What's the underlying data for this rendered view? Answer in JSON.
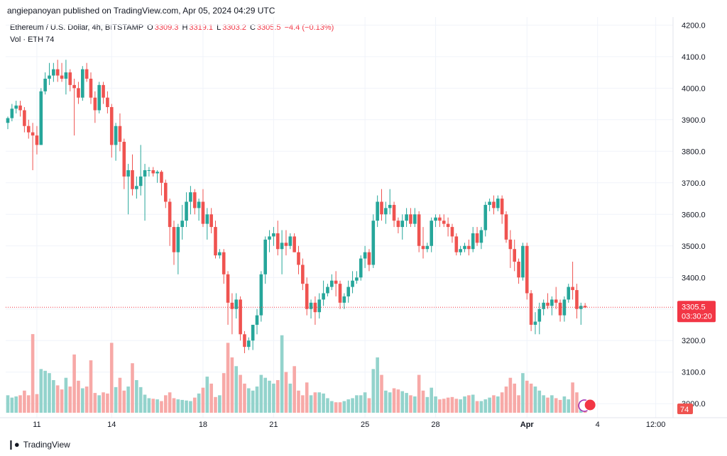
{
  "header": {
    "published": "angiepanoyan published on TradingView.com, Apr 05, 2024 04:29 UTC"
  },
  "legend": {
    "symbol": "Ethereum / U.S. Dollar, 4h, BITSTAMP",
    "o_label": "O",
    "o": "3309.3",
    "h_label": "H",
    "h": "3319.1",
    "l_label": "L",
    "l": "3303.2",
    "c_label": "C",
    "c": "3305.5",
    "change": "−4.4 (−0.13%)",
    "vol_label": "Vol · ETH",
    "vol": "74"
  },
  "footer": {
    "brand": "TradingView"
  },
  "colors": {
    "up": "#26a69a",
    "down": "#ef5350",
    "up_vol": "#93d3cc",
    "down_vol": "#f7a9a7",
    "price_line": "#f23645"
  },
  "chart_data": {
    "type": "candlestick",
    "interval": "4h",
    "ylim": [
      2960,
      4230
    ],
    "y_ticks": [
      "4200.0",
      "4100.0",
      "4000.0",
      "3900.0",
      "3800.0",
      "3700.0",
      "3600.0",
      "3500.0",
      "3400.0",
      "3300.0",
      "3200.0",
      "3100.0",
      "3000.0"
    ],
    "x_ticks": [
      {
        "label": "11",
        "bar": 7
      },
      {
        "label": "14",
        "bar": 25
      },
      {
        "label": "18",
        "bar": 47
      },
      {
        "label": "21",
        "bar": 64
      },
      {
        "label": "25",
        "bar": 86
      },
      {
        "label": "28",
        "bar": 103
      },
      {
        "label": "Apr",
        "bar": 125
      },
      {
        "label": "4",
        "bar": 142
      },
      {
        "label": "12:00",
        "bar": 156
      }
    ],
    "last_price": "3305.5",
    "countdown": "03:30:20",
    "last_volume": "74",
    "candles": [
      [
        3890,
        3910,
        3870,
        3905,
        300
      ],
      [
        3905,
        3950,
        3895,
        3935,
        260
      ],
      [
        3935,
        3960,
        3920,
        3945,
        280
      ],
      [
        3945,
        3960,
        3910,
        3930,
        300
      ],
      [
        3930,
        3940,
        3860,
        3880,
        380
      ],
      [
        3880,
        3900,
        3840,
        3860,
        300
      ],
      [
        3860,
        3890,
        3740,
        3850,
        1350
      ],
      [
        3850,
        3880,
        3790,
        3820,
        320
      ],
      [
        3820,
        4000,
        3820,
        3990,
        750
      ],
      [
        3990,
        4050,
        3980,
        4030,
        720
      ],
      [
        4030,
        4080,
        4010,
        4040,
        680
      ],
      [
        4040,
        4080,
        4020,
        4060,
        560
      ],
      [
        4060,
        4090,
        4020,
        4040,
        470
      ],
      [
        4040,
        4080,
        4020,
        4030,
        400
      ],
      [
        4030,
        4090,
        3980,
        4050,
        600
      ],
      [
        4050,
        4060,
        3990,
        4010,
        450
      ],
      [
        4010,
        4030,
        3850,
        4000,
        1000
      ],
      [
        4000,
        4020,
        3950,
        3970,
        550
      ],
      [
        3970,
        4070,
        3960,
        4060,
        420
      ],
      [
        4060,
        4080,
        4020,
        4030,
        450
      ],
      [
        4030,
        4050,
        3950,
        3970,
        900
      ],
      [
        3970,
        3990,
        3890,
        3930,
        340
      ],
      [
        3930,
        4020,
        3920,
        4010,
        300
      ],
      [
        4010,
        4020,
        3950,
        3970,
        350
      ],
      [
        3970,
        3990,
        3920,
        3940,
        330
      ],
      [
        3940,
        3950,
        3780,
        3820,
        1200
      ],
      [
        3820,
        3890,
        3770,
        3880,
        440
      ],
      [
        3880,
        3920,
        3800,
        3830,
        600
      ],
      [
        3830,
        3840,
        3680,
        3720,
        380
      ],
      [
        3720,
        3760,
        3600,
        3740,
        450
      ],
      [
        3740,
        3790,
        3660,
        3680,
        850
      ],
      [
        3680,
        3720,
        3650,
        3690,
        560
      ],
      [
        3690,
        3820,
        3660,
        3720,
        440
      ],
      [
        3720,
        3760,
        3580,
        3740,
        310
      ],
      [
        3740,
        3750,
        3720,
        3740,
        250
      ],
      [
        3740,
        3750,
        3720,
        3730,
        240
      ],
      [
        3730,
        3740,
        3700,
        3735,
        230
      ],
      [
        3735,
        3740,
        3660,
        3700,
        200
      ],
      [
        3700,
        3710,
        3620,
        3640,
        300
      ],
      [
        3640,
        3650,
        3500,
        3560,
        350
      ],
      [
        3560,
        3580,
        3440,
        3480,
        250
      ],
      [
        3480,
        3570,
        3410,
        3560,
        230
      ],
      [
        3560,
        3630,
        3520,
        3580,
        220
      ],
      [
        3580,
        3670,
        3560,
        3640,
        210
      ],
      [
        3640,
        3690,
        3600,
        3670,
        200
      ],
      [
        3670,
        3680,
        3600,
        3620,
        260
      ],
      [
        3620,
        3650,
        3580,
        3640,
        330
      ],
      [
        3640,
        3680,
        3560,
        3570,
        430
      ],
      [
        3570,
        3620,
        3520,
        3600,
        620
      ],
      [
        3600,
        3620,
        3540,
        3560,
        500
      ],
      [
        3560,
        3580,
        3460,
        3470,
        270
      ],
      [
        3470,
        3490,
        3460,
        3480,
        300
      ],
      [
        3480,
        3490,
        3380,
        3410,
        680
      ],
      [
        3410,
        3420,
        3250,
        3320,
        1200
      ],
      [
        3320,
        3350,
        3220,
        3300,
        950
      ],
      [
        3300,
        3350,
        3270,
        3330,
        800
      ],
      [
        3330,
        3340,
        3200,
        3220,
        650
      ],
      [
        3220,
        3230,
        3160,
        3180,
        500
      ],
      [
        3180,
        3210,
        3170,
        3200,
        420
      ],
      [
        3200,
        3250,
        3170,
        3250,
        380
      ],
      [
        3250,
        3300,
        3220,
        3280,
        450
      ],
      [
        3280,
        3420,
        3260,
        3410,
        650
      ],
      [
        3410,
        3530,
        3380,
        3520,
        600
      ],
      [
        3520,
        3550,
        3480,
        3530,
        550
      ],
      [
        3530,
        3560,
        3500,
        3540,
        500
      ],
      [
        3540,
        3580,
        3470,
        3490,
        560
      ],
      [
        3490,
        3550,
        3410,
        3510,
        1330
      ],
      [
        3510,
        3550,
        3470,
        3500,
        700
      ],
      [
        3500,
        3540,
        3490,
        3530,
        500
      ],
      [
        3530,
        3540,
        3480,
        3480,
        800
      ],
      [
        3480,
        3500,
        3410,
        3440,
        380
      ],
      [
        3440,
        3460,
        3360,
        3380,
        300
      ],
      [
        3380,
        3400,
        3280,
        3300,
        520
      ],
      [
        3300,
        3330,
        3270,
        3320,
        300
      ],
      [
        3320,
        3340,
        3250,
        3290,
        350
      ],
      [
        3290,
        3350,
        3270,
        3330,
        350
      ],
      [
        3330,
        3390,
        3310,
        3350,
        330
      ],
      [
        3350,
        3380,
        3340,
        3370,
        250
      ],
      [
        3370,
        3410,
        3360,
        3390,
        200
      ],
      [
        3390,
        3420,
        3340,
        3380,
        180
      ],
      [
        3380,
        3390,
        3300,
        3320,
        180
      ],
      [
        3320,
        3350,
        3300,
        3340,
        200
      ],
      [
        3340,
        3390,
        3320,
        3370,
        230
      ],
      [
        3370,
        3420,
        3350,
        3390,
        250
      ],
      [
        3390,
        3420,
        3380,
        3400,
        300
      ],
      [
        3400,
        3470,
        3390,
        3460,
        300
      ],
      [
        3460,
        3500,
        3430,
        3480,
        350
      ],
      [
        3480,
        3490,
        3420,
        3440,
        250
      ],
      [
        3440,
        3600,
        3430,
        3580,
        750
      ],
      [
        3580,
        3660,
        3560,
        3640,
        950
      ],
      [
        3640,
        3680,
        3580,
        3600,
        650
      ],
      [
        3600,
        3640,
        3570,
        3620,
        380
      ],
      [
        3620,
        3680,
        3600,
        3630,
        350
      ],
      [
        3630,
        3640,
        3560,
        3580,
        420
      ],
      [
        3580,
        3590,
        3540,
        3560,
        400
      ],
      [
        3560,
        3600,
        3520,
        3580,
        370
      ],
      [
        3580,
        3620,
        3560,
        3600,
        340
      ],
      [
        3600,
        3620,
        3560,
        3570,
        300
      ],
      [
        3570,
        3620,
        3560,
        3600,
        280
      ],
      [
        3600,
        3610,
        3480,
        3500,
        650
      ],
      [
        3500,
        3560,
        3460,
        3490,
        380
      ],
      [
        3490,
        3510,
        3480,
        3500,
        270
      ],
      [
        3500,
        3590,
        3480,
        3580,
        430
      ],
      [
        3580,
        3600,
        3560,
        3590,
        280
      ],
      [
        3590,
        3600,
        3560,
        3580,
        230
      ],
      [
        3580,
        3600,
        3560,
        3570,
        240
      ],
      [
        3570,
        3590,
        3530,
        3560,
        260
      ],
      [
        3560,
        3570,
        3510,
        3530,
        270
      ],
      [
        3530,
        3540,
        3470,
        3480,
        240
      ],
      [
        3480,
        3500,
        3470,
        3490,
        230
      ],
      [
        3490,
        3510,
        3480,
        3500,
        280
      ],
      [
        3500,
        3520,
        3470,
        3490,
        300
      ],
      [
        3490,
        3560,
        3480,
        3540,
        310
      ],
      [
        3540,
        3560,
        3500,
        3510,
        200
      ],
      [
        3510,
        3560,
        3490,
        3550,
        200
      ],
      [
        3550,
        3640,
        3530,
        3630,
        230
      ],
      [
        3630,
        3650,
        3610,
        3640,
        260
      ],
      [
        3640,
        3660,
        3600,
        3620,
        300
      ],
      [
        3620,
        3660,
        3610,
        3650,
        280
      ],
      [
        3650,
        3660,
        3570,
        3600,
        350
      ],
      [
        3600,
        3610,
        3510,
        3520,
        450
      ],
      [
        3520,
        3550,
        3430,
        3490,
        600
      ],
      [
        3490,
        3520,
        3420,
        3450,
        500
      ],
      [
        3450,
        3460,
        3380,
        3400,
        300
      ],
      [
        3400,
        3510,
        3390,
        3500,
        680
      ],
      [
        3500,
        3510,
        3330,
        3350,
        550
      ],
      [
        3350,
        3360,
        3230,
        3250,
        500
      ],
      [
        3250,
        3290,
        3220,
        3260,
        450
      ],
      [
        3260,
        3320,
        3220,
        3300,
        380
      ],
      [
        3300,
        3330,
        3280,
        3320,
        300
      ],
      [
        3320,
        3350,
        3300,
        3310,
        260
      ],
      [
        3310,
        3340,
        3280,
        3330,
        300
      ],
      [
        3330,
        3370,
        3300,
        3320,
        250
      ],
      [
        3320,
        3330,
        3260,
        3280,
        220
      ],
      [
        3280,
        3340,
        3260,
        3330,
        280
      ],
      [
        3330,
        3380,
        3320,
        3370,
        230
      ],
      [
        3370,
        3450,
        3330,
        3360,
        520
      ],
      [
        3360,
        3380,
        3270,
        3300,
        350
      ],
      [
        3300,
        3320,
        3250,
        3310,
        200
      ],
      [
        3310,
        3319,
        3303,
        3305,
        74
      ]
    ]
  }
}
